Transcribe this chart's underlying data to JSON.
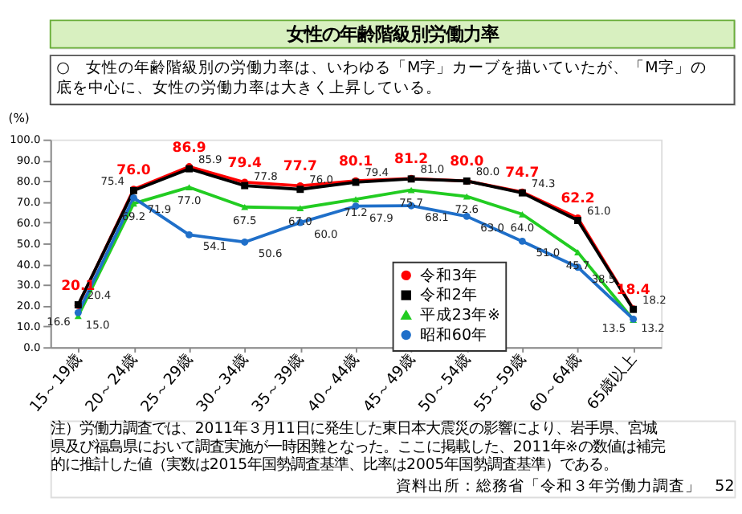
{
  "chart_data": {
    "type": "line",
    "title": "女性の年齢階級別労働力率",
    "subtitle": "○　女性の年齢階級別の労働力率は、いわゆる「M字」カーブを描いていたが、「M字」の底を中心に、女性の労働力率は大きく上昇している。",
    "ylabel": "(%)",
    "categories": [
      "15～19歳",
      "20～24歳",
      "25～29歳",
      "30～34歳",
      "35～39歳",
      "40～44歳",
      "45～49歳",
      "50～54歳",
      "55～59歳",
      "60～64歳",
      "65歳以上"
    ],
    "series": [
      {
        "name": "令和3年",
        "color": "#ff0000",
        "marker": "circle",
        "values": [
          20.1,
          76.0,
          86.9,
          79.4,
          77.7,
          80.1,
          81.2,
          80.0,
          74.7,
          62.2,
          18.4
        ],
        "value_labels": [
          "20.1",
          "76.0",
          "86.9",
          "79.4",
          "77.7",
          "80.1",
          "81.2",
          "80.0",
          "74.7",
          "62.2",
          "18.4"
        ]
      },
      {
        "name": "令和2年",
        "color": "#000000",
        "marker": "square",
        "values": [
          20.4,
          75.4,
          85.9,
          77.8,
          76.0,
          79.4,
          81.0,
          80.0,
          74.3,
          61.0,
          18.2
        ],
        "value_labels": [
          "20.4",
          "75.4",
          "85.9",
          "77.8",
          "76.0",
          "79.4",
          "81.0",
          "80.0",
          "74.3",
          "61.0",
          "18.2"
        ]
      },
      {
        "name": "平成23年※",
        "color": "#22cc22",
        "marker": "triangle",
        "values": [
          15.0,
          69.2,
          77.0,
          67.5,
          67.0,
          71.2,
          75.7,
          72.6,
          64.0,
          45.7,
          13.2
        ],
        "value_labels": [
          "15.0",
          "69.2",
          "77.0",
          "67.5",
          "67.0",
          "71.2",
          "75.7",
          "72.6",
          "64.0",
          "45.7",
          "13.2"
        ]
      },
      {
        "name": "昭和60年",
        "color": "#1f6fc9",
        "marker": "circle",
        "values": [
          16.6,
          71.9,
          54.1,
          50.6,
          60.0,
          67.9,
          68.1,
          63.0,
          51.0,
          38.5,
          13.5
        ],
        "value_labels": [
          "16.6",
          "71.9",
          "54.1",
          "50.6",
          "60.0",
          "67.9",
          "68.1",
          "63.0",
          "51.0",
          "38.5",
          "13.5"
        ]
      }
    ],
    "ylim": [
      0,
      100
    ],
    "yticks": [
      {
        "value": 0,
        "label": "0.0"
      },
      {
        "value": 10,
        "label": "10.0"
      },
      {
        "value": 20,
        "label": "20.0"
      },
      {
        "value": 30,
        "label": "30.0"
      },
      {
        "value": 40,
        "label": "40.0"
      },
      {
        "value": 50,
        "label": "50.0"
      },
      {
        "value": 60,
        "label": "60.0"
      },
      {
        "value": 70,
        "label": "70.0"
      },
      {
        "value": 80,
        "label": "80.0"
      },
      {
        "value": 90,
        "label": "90.0"
      },
      {
        "value": 100,
        "label": "100.0"
      }
    ],
    "grid": false,
    "legend": "bottom right",
    "line_style": "solid",
    "annotations": [
      "注）労働力調査では、2011年３月11日に発生した東日本大震災の影響により、岩手県、宮城県及び福島県において調査実施が一時困難となった。ここに掲載した、2011年※の数値は補完的に推計した値（実数は2015年国勢調査基準、比率は2005年国勢調査基準）である。",
      "資料出所：総務省「令和３年労働力調査」",
      "52"
    ]
  }
}
